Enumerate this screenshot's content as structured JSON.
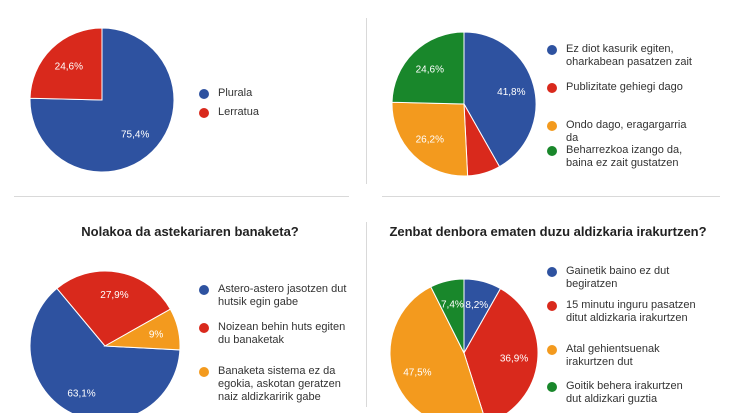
{
  "chart_data": [
    {
      "type": "pie",
      "title": "",
      "series": [
        {
          "label": "Plurala",
          "value": 75.4,
          "display": "75,4%",
          "color": "#2e52a0"
        },
        {
          "label": "Lerratua",
          "value": 24.6,
          "display": "24,6%",
          "color": "#d9291c"
        }
      ],
      "legend_position": "right"
    },
    {
      "type": "pie",
      "title": "",
      "series": [
        {
          "label": "Ez diot kasurik egiten, oharkabean pasatzen zait",
          "value": 41.8,
          "display": "41,8%",
          "color": "#2e52a0"
        },
        {
          "label": "Publizitate gehiegi dago",
          "value": 7.4,
          "display": "",
          "color": "#d9291c"
        },
        {
          "label": "Ondo dago, eragargarria da",
          "value": 26.2,
          "display": "26,2%",
          "color": "#f39a1e"
        },
        {
          "label": "Beharrezkoa izango da, baina ez zait gustatzen",
          "value": 24.6,
          "display": "24,6%",
          "color": "#19872b"
        }
      ],
      "legend_position": "right"
    },
    {
      "type": "pie",
      "title": "Nolakoa da astekariaren banaketa?",
      "series": [
        {
          "label": "Astero-astero jasotzen dut hutsik egin gabe",
          "value": 63.1,
          "display": "63,1%",
          "color": "#2e52a0"
        },
        {
          "label": "Noizean behin huts egiten du banaketak",
          "value": 27.9,
          "display": "27,9%",
          "color": "#d9291c"
        },
        {
          "label": "Banaketa sistema ez da egokia, askotan geratzen naiz aldizkaririk gabe",
          "value": 9,
          "display": "9%",
          "color": "#f39a1e"
        }
      ],
      "legend_position": "right"
    },
    {
      "type": "pie",
      "title": "Zenbat denbora ematen duzu aldizkaria irakurtzen?",
      "series": [
        {
          "label": "Gainetik baino ez dut begiratzen",
          "value": 8.2,
          "display": "8,2%",
          "color": "#2e52a0"
        },
        {
          "label": "15 minutu inguru pasatzen ditut aldizkaria irakurtzen",
          "value": 36.9,
          "display": "36,9%",
          "color": "#d9291c"
        },
        {
          "label": "Atal gehientsuenak irakurtzen dut",
          "value": 47.5,
          "display": "47,5%",
          "color": "#f39a1e"
        },
        {
          "label": "Goitik behera irakurtzen dut aldizkari guztia",
          "value": 7.4,
          "display": "7,4%",
          "color": "#19872b"
        }
      ],
      "legend_position": "right"
    }
  ]
}
